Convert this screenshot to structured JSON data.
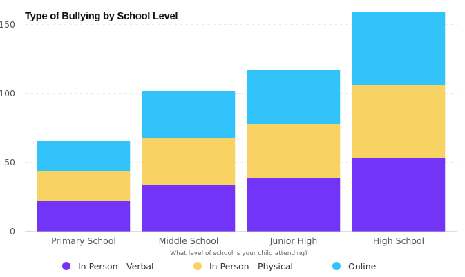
{
  "chart_data": {
    "type": "bar",
    "stacked": true,
    "title": "Type of Bullying by School Level",
    "xlabel": "What level of school is your child attending?",
    "ylabel": "",
    "ylim": [
      0,
      160
    ],
    "yticks": [
      0,
      50,
      100,
      150
    ],
    "grid": true,
    "legend_position": "bottom",
    "categories": [
      "Primary School",
      "Middle School",
      "Junior High",
      "High School"
    ],
    "series": [
      {
        "name": "In Person - Verbal",
        "color": "#7234f7",
        "values": [
          22,
          34,
          39,
          53
        ]
      },
      {
        "name": "In Person - Physical",
        "color": "#f8d262",
        "values": [
          22,
          34,
          39,
          53
        ]
      },
      {
        "name": "Online",
        "color": "#33c3fb",
        "values": [
          22,
          34,
          39,
          53
        ]
      }
    ]
  }
}
